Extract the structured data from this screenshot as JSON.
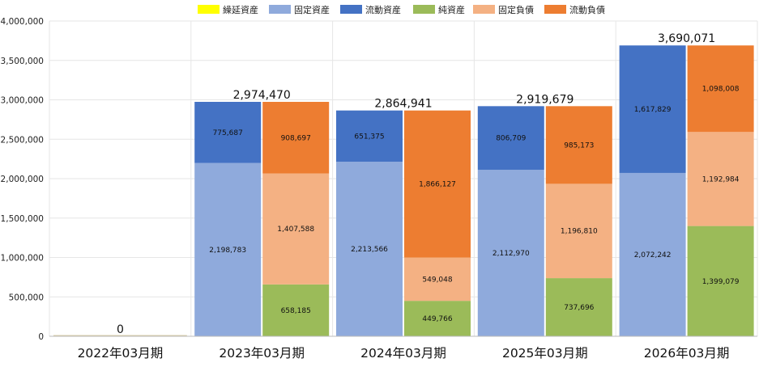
{
  "chart_data": {
    "type": "bar",
    "stacked": true,
    "grid": true,
    "legend_position": "top",
    "ylim": [
      0,
      4000000
    ],
    "y_ticks": [
      "0",
      "500,000",
      "1,000,000",
      "1,500,000",
      "2,000,000",
      "2,500,000",
      "3,000,000",
      "3,500,000",
      "4,000,000"
    ],
    "categories": [
      "2022年03月期",
      "2023年03月期",
      "2024年03月期",
      "2025年03月期",
      "2026年03月期"
    ],
    "legend": [
      {
        "name": "繰延資産",
        "color": "#FFFF00"
      },
      {
        "name": "固定資産",
        "color": "#8FAADC"
      },
      {
        "name": "流動資産",
        "color": "#4472C4"
      },
      {
        "name": "純資産",
        "color": "#9BBB59"
      },
      {
        "name": "固定負債",
        "color": "#F4B183"
      },
      {
        "name": "流動負債",
        "color": "#ED7D31"
      }
    ],
    "stacks": [
      {
        "column": "assets",
        "series": [
          {
            "name": "繰延資産",
            "color": "#FFFF00",
            "values": [
              0,
              0,
              0,
              0,
              0
            ],
            "labels": [
              "",
              "",
              "",
              "",
              ""
            ]
          },
          {
            "name": "固定資産",
            "color": "#8FAADC",
            "values": [
              0,
              2198783,
              2213566,
              2112970,
              2072242
            ],
            "labels": [
              "",
              "2,198,783",
              "2,213,566",
              "2,112,970",
              "2,072,242"
            ]
          },
          {
            "name": "流動資産",
            "color": "#4472C4",
            "values": [
              0,
              775687,
              651375,
              806709,
              1617829
            ],
            "labels": [
              "",
              "775,687",
              "651,375",
              "806,709",
              "1,617,829"
            ]
          }
        ]
      },
      {
        "column": "liabilities_equity",
        "series": [
          {
            "name": "純資産",
            "color": "#9BBB59",
            "values": [
              0,
              658185,
              449766,
              737696,
              1399079
            ],
            "labels": [
              "",
              "658,185",
              "449,766",
              "737,696",
              "1,399,079"
            ]
          },
          {
            "name": "固定負債",
            "color": "#F4B183",
            "values": [
              0,
              1407588,
              549048,
              1196810,
              1192984
            ],
            "labels": [
              "",
              "1,407,588",
              "549,048",
              "1,196,810",
              "1,192,984"
            ]
          },
          {
            "name": "流動負債",
            "color": "#ED7D31",
            "values": [
              0,
              908697,
              1866127,
              985173,
              1098008
            ],
            "labels": [
              "",
              "908,697",
              "1,866,127",
              "985,173",
              "1,098,008"
            ]
          }
        ]
      }
    ],
    "totals": [
      0,
      2974470,
      2864941,
      2919679,
      3690071
    ],
    "total_labels": [
      "0",
      "2,974,470",
      "2,864,941",
      "2,919,679",
      "3,690,071"
    ]
  }
}
